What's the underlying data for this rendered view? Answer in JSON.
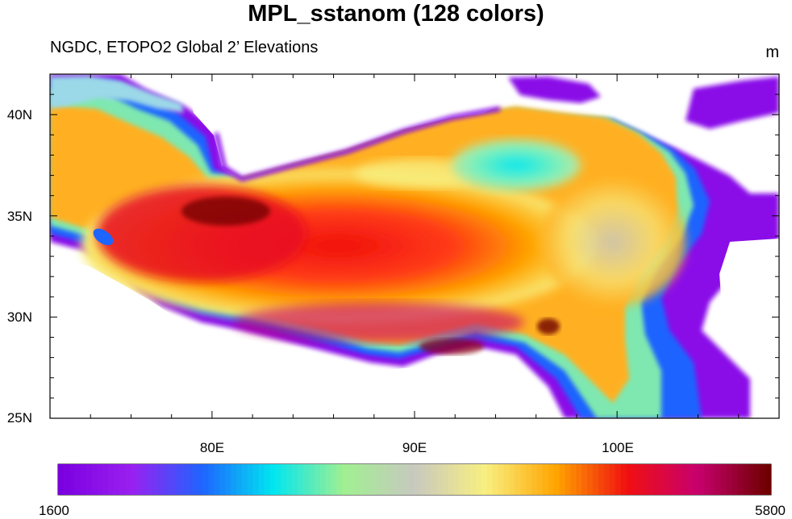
{
  "title": "MPL_sstanom (128 colors)",
  "subtitle": "NGDC, ETOPO2 Global 2’ Elevations",
  "units": "m",
  "map": {
    "lon_range": [
      72,
      108
    ],
    "lat_range": [
      25,
      42
    ],
    "y_ticks": [
      {
        "lat": 40,
        "label": "40N"
      },
      {
        "lat": 35,
        "label": "35N"
      },
      {
        "lat": 30,
        "label": "30N"
      },
      {
        "lat": 25,
        "label": "25N"
      }
    ],
    "x_ticks": [
      {
        "lon": 80,
        "label": "80E"
      },
      {
        "lon": 90,
        "label": "90E"
      },
      {
        "lon": 100,
        "label": "100E"
      }
    ],
    "colors": {
      "low": "#7b00e0",
      "blue": "#1e64ff",
      "cyan": "#00e6f0",
      "green": "#a0f090",
      "gray": "#c8c8c0",
      "yellow": "#f8f080",
      "orange": "#ffa500",
      "red": "#f01010",
      "crimson": "#c8006e",
      "high": "#6e0000"
    }
  },
  "colorbar": {
    "min_label": "1600",
    "max_label": "5800",
    "min": 1600,
    "max": 5800,
    "levels": 128
  }
}
